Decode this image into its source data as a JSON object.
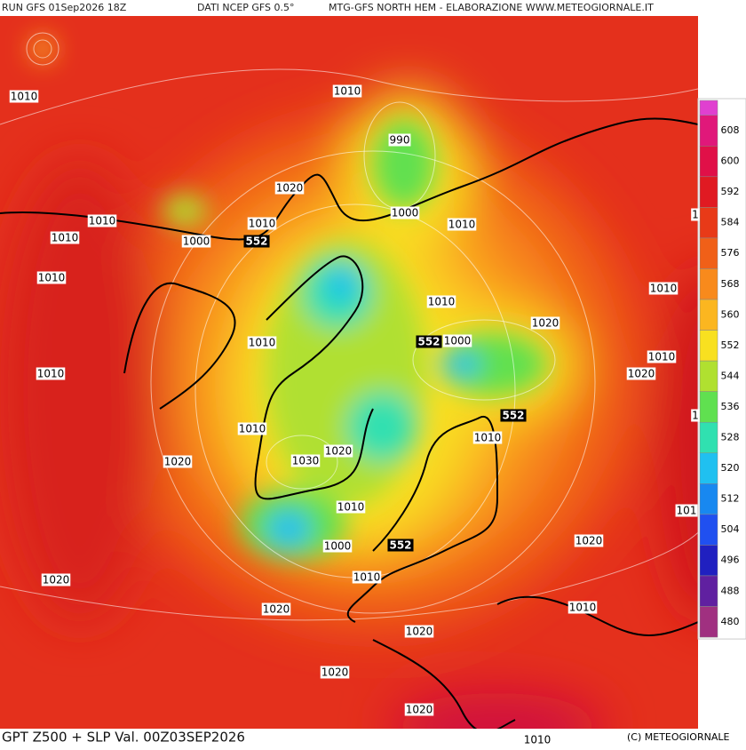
{
  "header": {
    "run": "RUN GFS 01Sep2026 18Z",
    "source": "DATI NCEP GFS 0.5°",
    "product": "MTG-GFS NORTH HEM - ELABORAZIONE WWW.METEOGIORNALE.IT"
  },
  "footer": {
    "title": "GPT Z500 + SLP Val. 00Z03SEP2026",
    "credit": "(C) METEOGIORNALE"
  },
  "colorbar": {
    "levels": [
      608,
      600,
      592,
      584,
      576,
      568,
      560,
      552,
      544,
      536,
      528,
      520,
      512,
      504,
      496,
      488,
      480
    ],
    "colors": [
      "#e040d0",
      "#e0187a",
      "#e01048",
      "#e01a22",
      "#e83a18",
      "#f06018",
      "#f88a1c",
      "#fbb620",
      "#f8e020",
      "#b0e030",
      "#60e050",
      "#30e0b0",
      "#20c0f0",
      "#1888f0",
      "#2050f0",
      "#2020c0",
      "#6020a0",
      "#a03080"
    ]
  },
  "slp_labels": [
    "1010",
    "1010",
    "990",
    "1020",
    "1010",
    "1010",
    "1000",
    "1010",
    "1000",
    "1010",
    "1010",
    "1010",
    "1010",
    "1020",
    "1010",
    "1000",
    "1010",
    "1010",
    "1020",
    "1",
    "1010",
    "1010",
    "1020",
    "1030",
    "1020",
    "1010",
    "1000",
    "1020",
    "1010",
    "1020",
    "1020",
    "1010",
    "1020",
    "1020",
    "1020",
    "1010",
    "101",
    "1"
  ],
  "z500_labels": [
    "552",
    "552",
    "552",
    "552"
  ]
}
